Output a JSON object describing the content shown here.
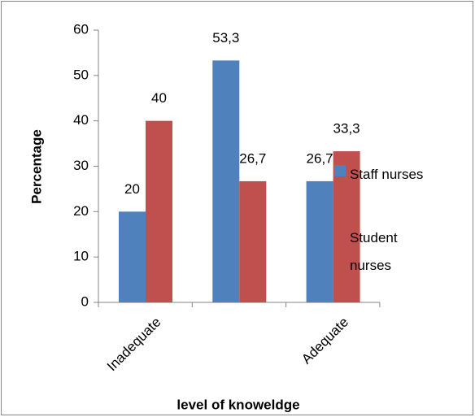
{
  "chart_data": {
    "type": "bar",
    "x_label": "level of knoweldge",
    "y_label": "Percentage",
    "categories": [
      "Inadequate",
      null,
      "Adequate"
    ],
    "series": [
      {
        "name": "Staff nurses",
        "color": "#4f81bd",
        "values": [
          20,
          53.3,
          26.7
        ],
        "value_labels": [
          "20",
          "53,3",
          "26,7"
        ]
      },
      {
        "name": "Student nurses",
        "color": "#c0504d",
        "values": [
          40,
          26.7,
          33.3
        ],
        "value_labels": [
          "40",
          "26,7",
          "33,3"
        ]
      }
    ],
    "ylim": [
      0,
      60
    ],
    "yticks": [
      0,
      10,
      20,
      30,
      40,
      50,
      60
    ],
    "grid": false,
    "legend": "right"
  }
}
